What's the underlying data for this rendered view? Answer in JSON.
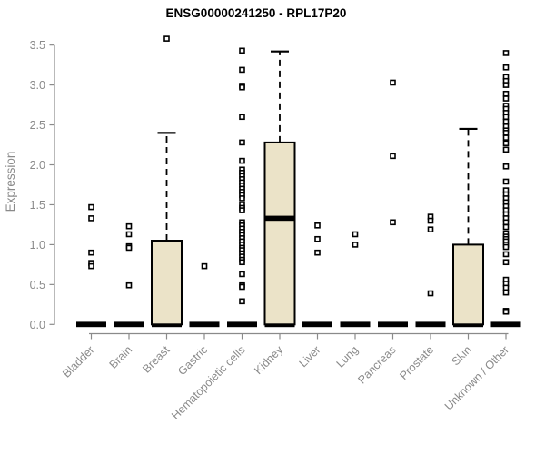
{
  "window": {
    "background": "#ffffff"
  },
  "chart_data": {
    "type": "boxplot",
    "title": "ENSG00000241250 - RPL17P20",
    "ylabel": "Expression",
    "xlabel": "",
    "ylim": [
      0,
      3.5
    ],
    "yticks": [
      "0.0",
      "0.5",
      "1.0",
      "1.5",
      "2.0",
      "2.5",
      "3.0",
      "3.5"
    ],
    "grid": false,
    "legend": null,
    "colors": {
      "box_fill": "#ebe3c8",
      "box_stroke": "#000000",
      "median": "#000000",
      "whisker": "#000000",
      "outlier_stroke": "#000000",
      "outlier_fill": "#ffffff",
      "axis": "#8a8a8a",
      "tick_label": "#8a8a8a",
      "title": "#000000"
    },
    "categories": [
      "Bladder",
      "Brain",
      "Breast",
      "Gastric",
      "Hematopoietic cells",
      "Kidney",
      "Liver",
      "Lung",
      "Pancreas",
      "Prostate",
      "Skin",
      "Unknown / Other"
    ],
    "boxes": [
      {
        "category": "Bladder",
        "whisker_low": 0,
        "q1": 0,
        "median": 0,
        "q3": 0,
        "whisker_high": 0,
        "outliers": [
          1.47,
          1.33,
          0.9,
          0.77,
          0.73
        ]
      },
      {
        "category": "Brain",
        "whisker_low": 0,
        "q1": 0,
        "median": 0,
        "q3": 0,
        "whisker_high": 0,
        "outliers": [
          1.23,
          1.13,
          0.98,
          0.96,
          0.49
        ]
      },
      {
        "category": "Breast",
        "whisker_low": 0,
        "q1": 0,
        "median": 0,
        "q3": 1.05,
        "whisker_high": 2.4,
        "outliers": [
          3.58
        ]
      },
      {
        "category": "Gastric",
        "whisker_low": 0,
        "q1": 0,
        "median": 0,
        "q3": 0,
        "whisker_high": 0,
        "outliers": [
          0.73
        ]
      },
      {
        "category": "Hematopoietic cells",
        "whisker_low": 0,
        "q1": 0,
        "median": 0,
        "q3": 0,
        "whisker_high": 0,
        "outliers": [
          3.43,
          3.19,
          2.99,
          2.97,
          2.6,
          2.28,
          2.05,
          1.94,
          1.9,
          1.86,
          1.82,
          1.78,
          1.74,
          1.7,
          1.66,
          1.62,
          1.58,
          1.5,
          1.46,
          1.43,
          1.28,
          1.24,
          1.2,
          1.16,
          1.12,
          1.08,
          1.04,
          1.0,
          0.96,
          0.93,
          0.89,
          0.85,
          0.81,
          0.78,
          0.63,
          0.49,
          0.47,
          0.29
        ]
      },
      {
        "category": "Kidney",
        "whisker_low": 0,
        "q1": 0,
        "median": 1.33,
        "q3": 2.28,
        "whisker_high": 3.42,
        "outliers": []
      },
      {
        "category": "Liver",
        "whisker_low": 0,
        "q1": 0,
        "median": 0,
        "q3": 0,
        "whisker_high": 0,
        "outliers": [
          1.24,
          1.07,
          0.9
        ]
      },
      {
        "category": "Lung",
        "whisker_low": 0,
        "q1": 0,
        "median": 0,
        "q3": 0,
        "whisker_high": 0,
        "outliers": [
          1.13,
          1.0
        ]
      },
      {
        "category": "Pancreas",
        "whisker_low": 0,
        "q1": 0,
        "median": 0,
        "q3": 0,
        "whisker_high": 0,
        "outliers": [
          3.03,
          2.11,
          1.28
        ]
      },
      {
        "category": "Prostate",
        "whisker_low": 0,
        "q1": 0,
        "median": 0,
        "q3": 0,
        "whisker_high": 0,
        "outliers": [
          1.35,
          1.3,
          1.19,
          0.39
        ]
      },
      {
        "category": "Skin",
        "whisker_low": 0,
        "q1": 0,
        "median": 0,
        "q3": 1.0,
        "whisker_high": 2.45,
        "outliers": []
      },
      {
        "category": "Unknown / Other",
        "whisker_low": 0,
        "q1": 0,
        "median": 0,
        "q3": 0,
        "whisker_high": 0,
        "outliers": [
          3.4,
          3.22,
          3.1,
          3.05,
          3.0,
          2.89,
          2.83,
          2.74,
          2.7,
          2.65,
          2.6,
          2.54,
          2.48,
          2.43,
          2.4,
          2.34,
          2.27,
          2.19,
          1.98,
          1.79,
          1.68,
          1.63,
          1.58,
          1.53,
          1.48,
          1.43,
          1.38,
          1.33,
          1.28,
          1.22,
          1.14,
          1.1,
          1.07,
          1.04,
          1.0,
          0.97,
          0.88,
          0.78,
          0.56,
          0.51,
          0.46,
          0.4,
          0.17,
          0.16
        ]
      }
    ]
  }
}
